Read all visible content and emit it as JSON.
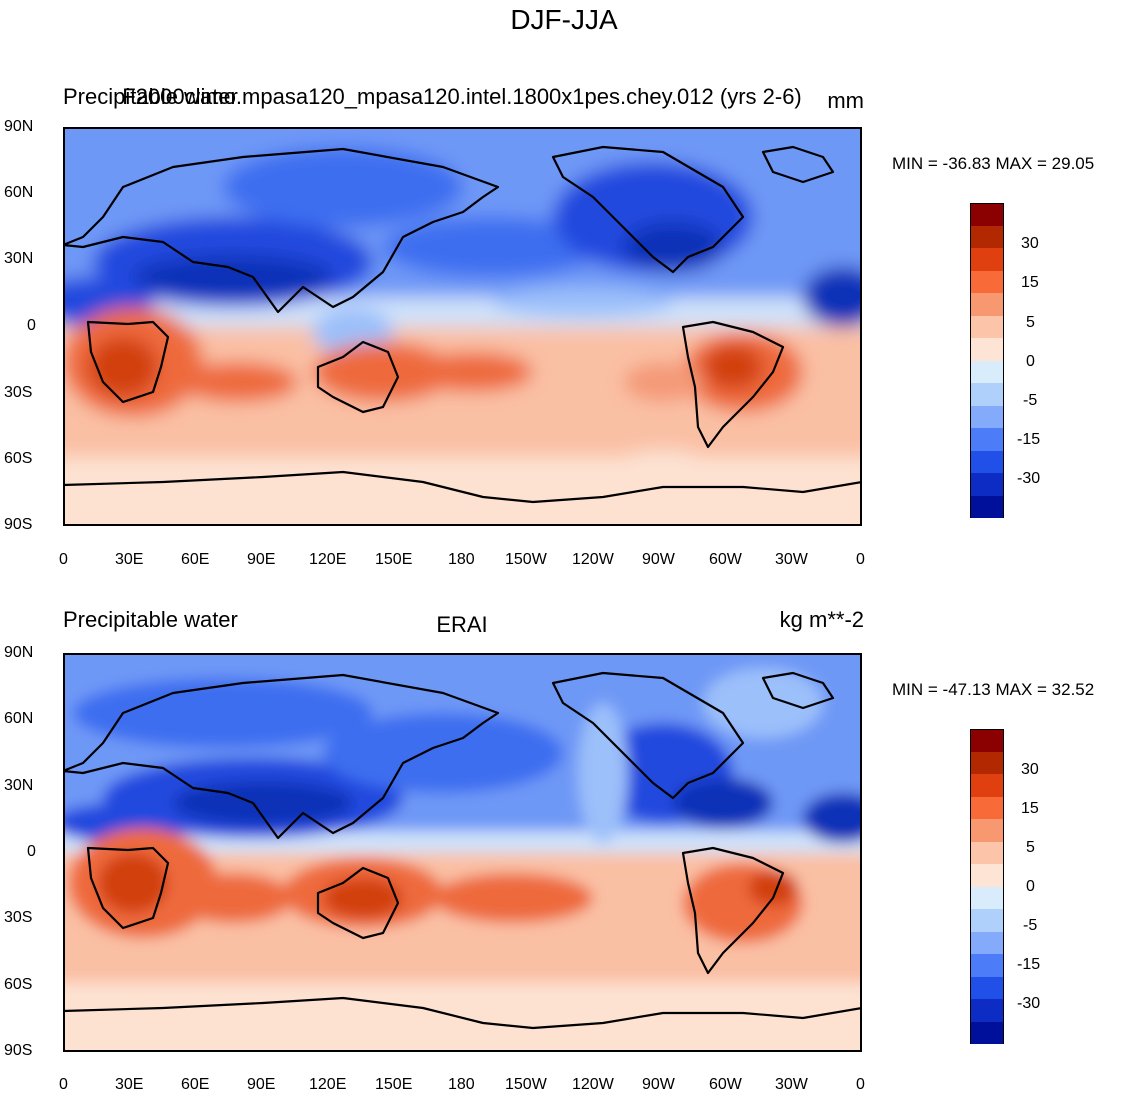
{
  "figure": {
    "title": "DJF-JJA"
  },
  "panels": [
    {
      "left_label": "Precipitable water",
      "center_label": "F2000climo.mpasa120_mpasa120.intel.1800x1pes.chey.012 (yrs 2-6)",
      "right_label": "mm",
      "minmax": "MIN = -36.83 MAX =  29.05",
      "min": -36.83,
      "max": 29.05
    },
    {
      "left_label": "Precipitable water",
      "center_label": "ERAI",
      "right_label": "kg m**-2",
      "minmax": "MIN = -47.13 MAX =  32.52",
      "min": -47.13,
      "max": 32.52
    }
  ],
  "axes": {
    "lat_ticks": [
      "90N",
      "60N",
      "30N",
      "0",
      "30S",
      "60S",
      "90S"
    ],
    "lon_ticks": [
      "0",
      "30E",
      "60E",
      "90E",
      "120E",
      "150E",
      "180",
      "150W",
      "120W",
      "90W",
      "60W",
      "30W",
      "0"
    ]
  },
  "colorbar": {
    "colors": [
      "#8b0000",
      "#b22800",
      "#e04010",
      "#f86a38",
      "#f89870",
      "#fcc4a8",
      "#fde4d4",
      "#d8ecfc",
      "#b0d0fc",
      "#84aafc",
      "#4c7cf8",
      "#2050e8",
      "#0c2cc4",
      "#00109a"
    ],
    "labels": [
      "30",
      "15",
      "5",
      "0",
      "-5",
      "-15",
      "-30"
    ]
  },
  "colors": {
    "strong_red": "#d24010",
    "red": "#ee6a3e",
    "salmon": "#f49a78",
    "light_salmon": "#fac0a4",
    "peach": "#fde2d2",
    "pale_blue": "#cfe2fa",
    "light_blue": "#9cc0fa",
    "blue": "#6e98f6",
    "mid_blue": "#3e6ef0",
    "deep_blue": "#2048de",
    "darkest_blue": "#1030b8",
    "coast": "#000000"
  }
}
